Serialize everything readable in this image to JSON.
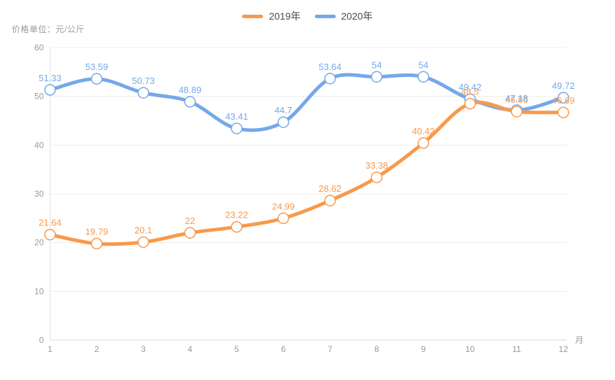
{
  "title": {
    "unit_label": "价格单位：元/公斤"
  },
  "legend": {
    "items": [
      {
        "label": "2019年",
        "color": "#f9994a"
      },
      {
        "label": "2020年",
        "color": "#74a8ea"
      }
    ]
  },
  "chart_data": {
    "type": "line",
    "x": [
      "1",
      "2",
      "3",
      "4",
      "5",
      "6",
      "7",
      "8",
      "9",
      "10",
      "11",
      "12"
    ],
    "x_unit": "月",
    "xlabel": "月",
    "ylabel": "价格单位：元/公斤",
    "ylim": [
      0,
      60
    ],
    "y_ticks": [
      "0",
      "10",
      "20",
      "30",
      "40",
      "50",
      "60"
    ],
    "grid": true,
    "smooth": true,
    "legend_position": "top-center",
    "series": [
      {
        "name": "2019年",
        "color": "#f9994a",
        "values": [
          21.64,
          19.79,
          20.1,
          22,
          23.22,
          24.99,
          28.62,
          33.38,
          40.42,
          48.5,
          46.86,
          46.69
        ]
      },
      {
        "name": "2020年",
        "color": "#74a8ea",
        "values": [
          51.33,
          53.59,
          50.73,
          48.89,
          43.41,
          44.7,
          53.64,
          54,
          54,
          49.42,
          47.18,
          49.72
        ]
      }
    ],
    "style": {
      "grid_color": "#ececec",
      "axis_line_color": "#d9d9d9",
      "tick_text_color": "#999999",
      "line_width": 5,
      "marker_radius": 7.5,
      "label_font_size": 13
    }
  }
}
